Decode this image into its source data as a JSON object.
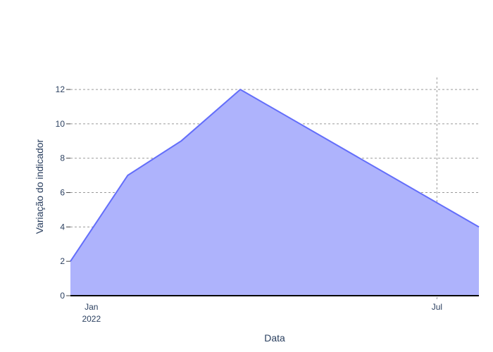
{
  "chart_data": {
    "type": "area",
    "title": "",
    "xlabel": "Data",
    "ylabel": "Variação do indicador",
    "x": [
      "2021-12-21",
      "2022-01-20",
      "2022-02-17",
      "2022-03-20",
      "2022-07-23"
    ],
    "series": [
      {
        "values": [
          2,
          7,
          9,
          12,
          4
        ]
      }
    ],
    "xlim": [
      "2021-12-21",
      "2022-07-23"
    ],
    "ylim": [
      0,
      12.7
    ],
    "y_ticks": [
      0,
      2,
      4,
      6,
      8,
      10,
      12
    ],
    "x_ticks": [
      {
        "date": "2022-01-01",
        "label": "Jan",
        "sublabel": "2022"
      },
      {
        "date": "2022-07-01",
        "label": "Jul",
        "sublabel": ""
      }
    ],
    "grid": true,
    "fill_color": "#aeb3fc",
    "line_color": "#636efa",
    "grid_color": "#9a9a9a"
  }
}
